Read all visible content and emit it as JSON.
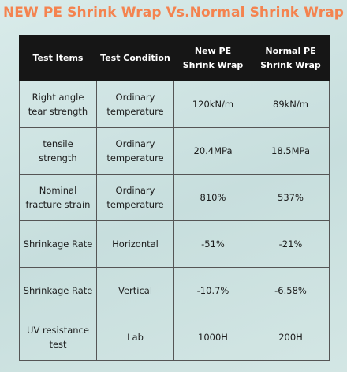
{
  "title": "NEW PE Shrink Wrap Vs.Normal Shrink Wrap",
  "table": {
    "headers": [
      "Test Items",
      "Test Condition",
      "New PE Shrink Wrap",
      "Normal PE Shrink Wrap"
    ],
    "rows": [
      [
        "Right angle tear strength",
        "Ordinary temperature",
        "120kN/m",
        "89kN/m"
      ],
      [
        "tensile strength",
        "Ordinary temperature",
        "20.4MPa",
        "18.5MPa"
      ],
      [
        "Nominal fracture strain",
        "Ordinary temperature",
        "810%",
        "537%"
      ],
      [
        "Shrinkage Rate",
        "Horizontal",
        "-51%",
        "-21%"
      ],
      [
        "Shrinkage Rate",
        "Vertical",
        "-10.7%",
        "-6.58%"
      ],
      [
        "UV resistance test",
        "Lab",
        "1000H",
        "200H"
      ]
    ]
  }
}
